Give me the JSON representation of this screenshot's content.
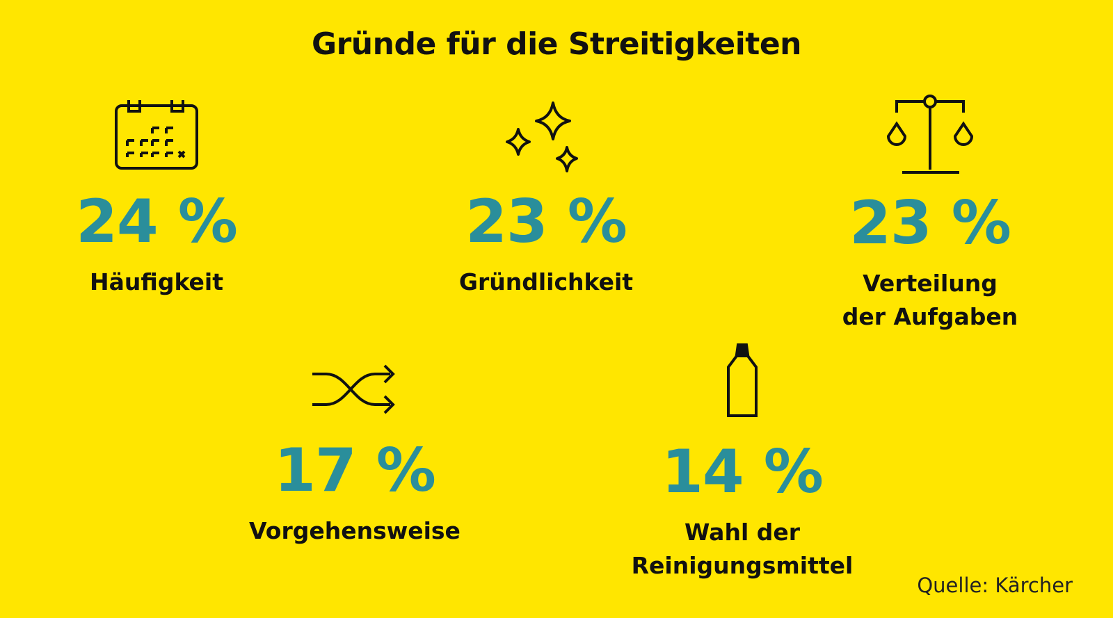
{
  "title": "Gründe für die Streitigkeiten",
  "source": "Quelle: Kärcher",
  "colors": {
    "background": "#FFE600",
    "accent": "#2A8E9B"
  },
  "chart_data": {
    "type": "table",
    "title": "Gründe für die Streitigkeiten",
    "unit": "%",
    "items": [
      {
        "label": "Häufigkeit",
        "value": 24,
        "display": "24 %",
        "icon": "calendar-icon"
      },
      {
        "label": "Gründlichkeit",
        "value": 23,
        "display": "23 %",
        "icon": "sparkle-icon"
      },
      {
        "label": "Verteilung der Aufgaben",
        "line1": "Verteilung",
        "line2": "der Aufgaben",
        "value": 23,
        "display": "23 %",
        "icon": "scales-icon"
      },
      {
        "label": "Vorgehensweise",
        "value": 17,
        "display": "17 %",
        "icon": "shuffle-icon"
      },
      {
        "label": "Wahl der Reinigungsmittel",
        "line1": "Wahl der",
        "line2": "Reinigungsmittel",
        "value": 14,
        "display": "14 %",
        "icon": "bottle-icon"
      }
    ]
  }
}
